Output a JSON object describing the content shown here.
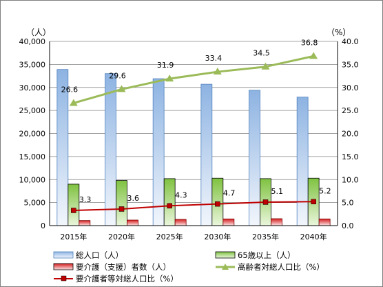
{
  "chart_data": {
    "type": "bar",
    "categories": [
      "2015年",
      "2020年",
      "2025年",
      "2030年",
      "2035年",
      "2040年"
    ],
    "y_left": {
      "unit": "（人）",
      "min": 0,
      "max": 40000,
      "step": 5000,
      "ticks": [
        "0",
        "5,000",
        "10,000",
        "15,000",
        "20,000",
        "25,000",
        "30,000",
        "35,000",
        "40,000"
      ]
    },
    "y_right": {
      "unit": "（%）",
      "min": 0,
      "max": 40,
      "step": 5,
      "ticks": [
        "0.0",
        "5.0",
        "10.0",
        "15.0",
        "20.0",
        "25.0",
        "30.0",
        "35.0",
        "40.0"
      ]
    },
    "grid": true,
    "legend_position": "bottom",
    "series": [
      {
        "name": "総人口（人）",
        "kind": "bar",
        "axis": "left",
        "color": "#8eb4e3",
        "values": [
          33900,
          33000,
          31900,
          30700,
          29400,
          27900
        ]
      },
      {
        "name": "65歳以上（人）",
        "kind": "bar",
        "axis": "left",
        "color": "#92d050",
        "values": [
          9000,
          9800,
          10200,
          10300,
          10200,
          10300
        ]
      },
      {
        "name": "要介護（支援）者数（人）",
        "kind": "bar",
        "axis": "left",
        "color": "#e46c6c",
        "values": [
          1100,
          1200,
          1350,
          1450,
          1500,
          1450
        ]
      },
      {
        "name": "高齢者対総人口比（%）",
        "kind": "line",
        "axis": "right",
        "color": "#9bbb59",
        "marker": "triangle",
        "values": [
          26.6,
          29.6,
          31.9,
          33.4,
          34.5,
          36.8
        ],
        "labels": [
          "26.6",
          "29.6",
          "31.9",
          "33.4",
          "34.5",
          "36.8"
        ]
      },
      {
        "name": "要介護者等対総人口比（%）",
        "kind": "line",
        "axis": "right",
        "color": "#c00000",
        "marker": "square",
        "values": [
          3.3,
          3.6,
          4.3,
          4.7,
          5.1,
          5.2
        ],
        "labels": [
          "3.3",
          "3.6",
          "4.3",
          "4.7",
          "5.1",
          "5.2"
        ]
      }
    ]
  }
}
